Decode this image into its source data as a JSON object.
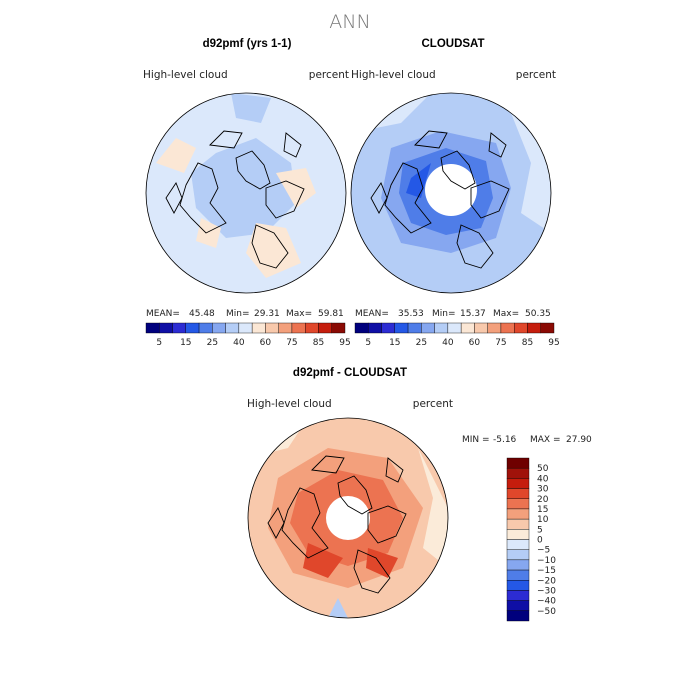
{
  "season": "ANN",
  "colors": {
    "abs_scale": [
      "#00007d",
      "#0f0fa5",
      "#2c2cd3",
      "#2458e6",
      "#4f7de8",
      "#86a7f0",
      "#b4cdf6",
      "#dbe8fb",
      "#fbe7d5",
      "#f8c9ac",
      "#f3a07c",
      "#ec7351",
      "#e0472b",
      "#c51d0d",
      "#8a0a04"
    ],
    "diff_scale": [
      "#00007d",
      "#0f0fa5",
      "#2c2cd3",
      "#2458e6",
      "#4f7de8",
      "#86a7f0",
      "#b4cdf6",
      "#dbe8fb",
      "#fbebd9",
      "#f8c9ac",
      "#f3a07c",
      "#ec7351",
      "#e0472b",
      "#c51d0d",
      "#a0120a",
      "#6f0000"
    ],
    "land_outline": "#000000"
  },
  "chart_data": [
    {
      "type": "heatmap",
      "title": "d92pmf (yrs 1-1)",
      "variable": "High-level cloud",
      "units": "percent",
      "projection": "north-polar-stereographic",
      "stats": {
        "mean_label": "MEAN=",
        "mean": "45.48",
        "min_label": "Min=",
        "min": "29.31",
        "max_label": "Max=",
        "max": "59.81"
      },
      "colorbar_labels": [
        "5",
        "15",
        "25",
        "40",
        "60",
        "75",
        "85",
        "95"
      ],
      "field": {
        "pole": 38,
        "midlat_land": 48,
        "ocean": 42,
        "edge": 38
      }
    },
    {
      "type": "heatmap",
      "title": "CLOUDSAT",
      "variable": "High-level cloud",
      "units": "percent",
      "projection": "north-polar-stereographic",
      "stats": {
        "mean_label": "MEAN=",
        "mean": "35.53",
        "min_label": "Min=",
        "min": "15.37",
        "max_label": "Max=",
        "max": "50.35"
      },
      "colorbar_labels": [
        "5",
        "15",
        "25",
        "40",
        "60",
        "75",
        "85",
        "95"
      ],
      "field": {
        "pole": "missing",
        "arctic": 20,
        "midlat": 30,
        "edge": 40
      }
    },
    {
      "type": "heatmap",
      "title": "d92pmf - CLOUDSAT",
      "variable": "High-level cloud",
      "units": "percent",
      "projection": "north-polar-stereographic",
      "stats": {
        "min_label": "MIN =",
        "min": "-5.16",
        "max_label": "MAX =",
        "max": "27.90"
      },
      "colorbar_labels": [
        "50",
        "40",
        "30",
        "20",
        "15",
        "10",
        "5",
        "0",
        "−5",
        "−10",
        "−15",
        "−20",
        "−30",
        "−40",
        "−50"
      ],
      "field": {
        "pole": "missing",
        "arctic": 20,
        "midlat": 10,
        "edge": 3
      }
    }
  ]
}
